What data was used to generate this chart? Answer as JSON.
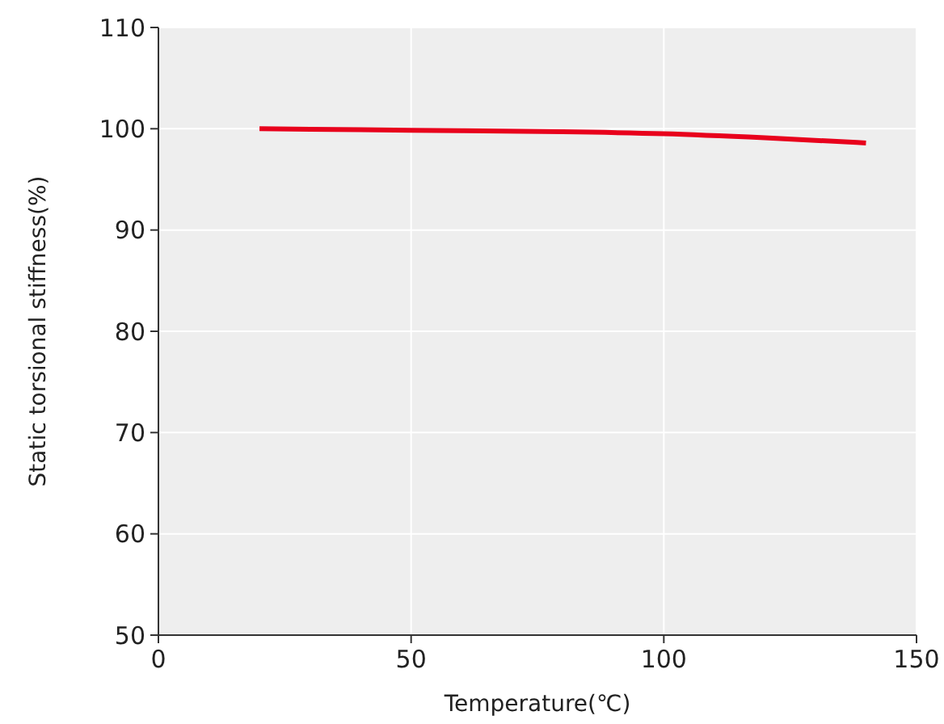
{
  "chart_data": {
    "type": "line",
    "xlabel": "Temperature(℃)",
    "ylabel": "Static torsional stiffness(%)",
    "series": [
      {
        "color": "#e8001c",
        "x": [
          20,
          40,
          60,
          80,
          100,
          120,
          140
        ],
        "values": [
          100,
          99.9,
          99.8,
          99.7,
          99.5,
          99.1,
          98.6
        ]
      }
    ],
    "xlim": [
      0,
      150
    ],
    "xticks": [
      0,
      50,
      100,
      150
    ],
    "ylim": [
      50,
      110
    ],
    "yticks": [
      50,
      60,
      70,
      80,
      90,
      100,
      110
    ],
    "grid": true,
    "line_style": "solid",
    "marker": "none"
  }
}
